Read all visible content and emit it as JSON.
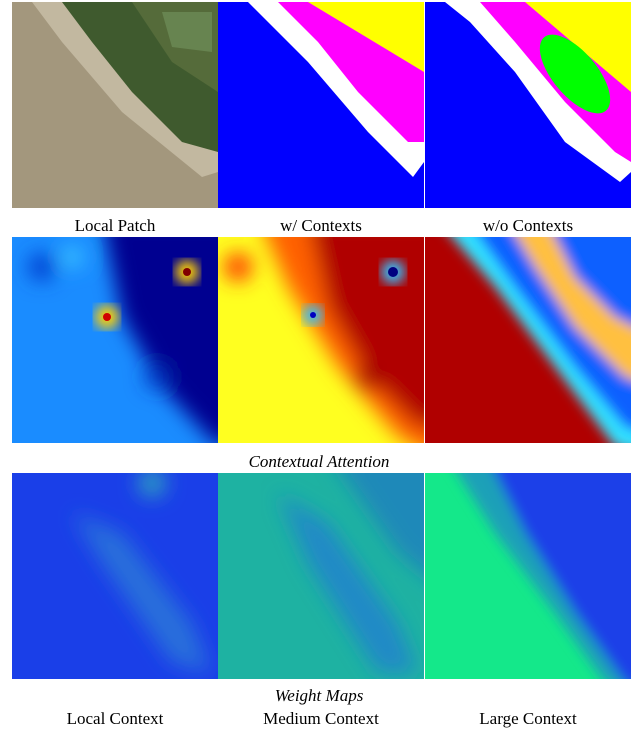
{
  "figure": {
    "top_labels": [
      "Local Patch",
      "w/ Contexts",
      "w/o Contexts"
    ],
    "attention_caption": "Contextual Attention",
    "weight_caption": "Weight Maps",
    "column_labels": [
      "Local Context",
      "Medium Context",
      "Large Context"
    ]
  }
}
